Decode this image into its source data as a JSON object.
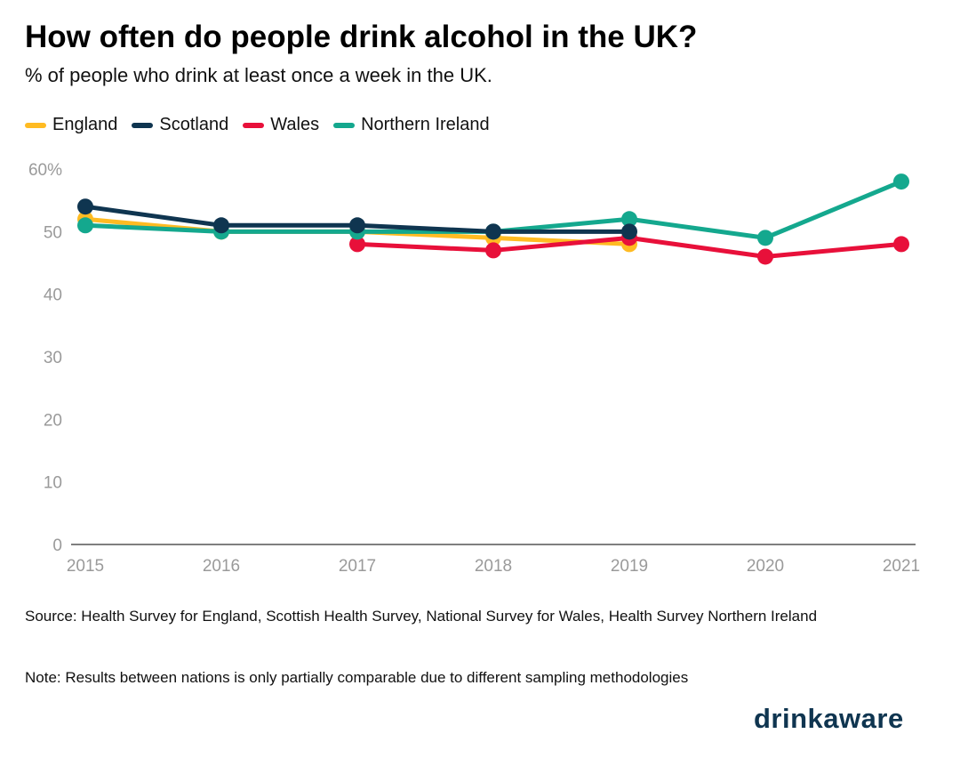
{
  "title": "How often do people drink alcohol in the UK?",
  "subtitle": "% of people who drink at least once a week in the UK.",
  "source": "Source: Health Survey for England, Scottish Health Survey, National Survey for Wales, Health Survey Northern Ireland",
  "note": "Note: Results between nations is only partially comparable due to different sampling methodologies",
  "logo": "drinkaware",
  "chart_data": {
    "type": "line",
    "x": [
      "2015",
      "2016",
      "2017",
      "2018",
      "2019",
      "2020",
      "2021"
    ],
    "ylim": [
      0,
      60
    ],
    "yticks": [
      0,
      10,
      20,
      30,
      40,
      50,
      60
    ],
    "ytick_labels": [
      "0",
      "10",
      "20",
      "30",
      "40",
      "50",
      "60%"
    ],
    "grid": false,
    "legend": "top-left",
    "series": [
      {
        "name": "England",
        "color": "#FFBB22",
        "values": [
          52,
          50,
          50,
          49,
          48,
          null,
          null
        ]
      },
      {
        "name": "Wales",
        "color": "#E8103A",
        "values": [
          null,
          null,
          48,
          47,
          49,
          46,
          48
        ]
      },
      {
        "name": "Northern Ireland",
        "color": "#14A88E",
        "values": [
          51,
          50,
          50,
          50,
          52,
          49,
          58
        ]
      },
      {
        "name": "Scotland",
        "color": "#0F3550",
        "values": [
          54,
          51,
          51,
          50,
          50,
          null,
          null
        ]
      }
    ]
  }
}
